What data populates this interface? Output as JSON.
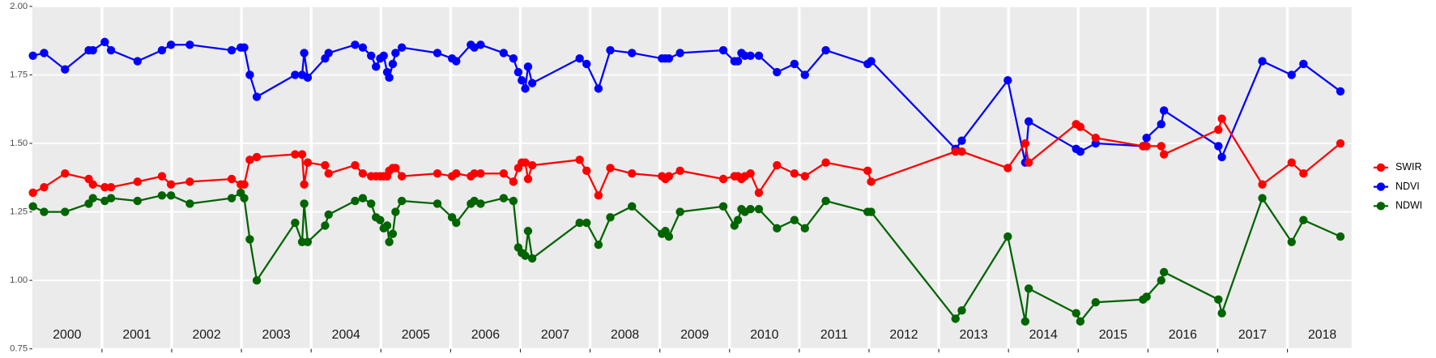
{
  "chart_data": {
    "type": "line",
    "x": [
      2000.01,
      2000.17,
      2000.47,
      2000.81,
      2000.87,
      2001.04,
      2001.13,
      2001.51,
      2001.86,
      2001.99,
      2002.26,
      2002.86,
      2002.99,
      2003.04,
      2003.12,
      2003.22,
      2003.77,
      2003.87,
      2003.9,
      2003.95,
      2004.2,
      2004.25,
      2004.63,
      2004.74,
      2004.86,
      2004.93,
      2004.99,
      2005.04,
      2005.09,
      2005.12,
      2005.17,
      2005.21,
      2005.3,
      2005.81,
      2006.02,
      2006.08,
      2006.29,
      2006.34,
      2006.43,
      2006.76,
      2006.9,
      2006.97,
      2007.02,
      2007.07,
      2007.11,
      2007.17,
      2007.85,
      2007.95,
      2008.12,
      2008.29,
      2008.6,
      2009.03,
      2009.08,
      2009.13,
      2009.29,
      2009.91,
      2010.07,
      2010.12,
      2010.17,
      2010.22,
      2010.3,
      2010.42,
      2010.68,
      2010.93,
      2011.08,
      2011.38,
      2011.98,
      2012.03,
      2013.24,
      2013.33,
      2013.99,
      2014.24,
      2014.29,
      2014.97,
      2015.03,
      2015.25,
      2015.93,
      2015.98,
      2016.19,
      2016.23,
      2017.01,
      2017.06,
      2017.64,
      2018.06,
      2018.23,
      2018.76
    ],
    "series": [
      {
        "name": "SWIR",
        "color": "#ff0000",
        "values": [
          1.32,
          1.34,
          1.39,
          1.37,
          1.35,
          1.34,
          1.34,
          1.36,
          1.38,
          1.35,
          1.36,
          1.37,
          1.35,
          1.35,
          1.44,
          1.45,
          1.46,
          1.46,
          1.35,
          1.43,
          1.42,
          1.39,
          1.42,
          1.39,
          1.38,
          1.38,
          1.38,
          1.38,
          1.38,
          1.4,
          1.41,
          1.41,
          1.38,
          1.39,
          1.38,
          1.39,
          1.38,
          1.39,
          1.39,
          1.39,
          1.36,
          1.41,
          1.43,
          1.43,
          1.37,
          1.42,
          1.44,
          1.4,
          1.31,
          1.41,
          1.39,
          1.38,
          1.37,
          1.38,
          1.4,
          1.37,
          1.38,
          1.38,
          1.37,
          1.38,
          1.39,
          1.32,
          1.42,
          1.39,
          1.38,
          1.43,
          1.4,
          1.36,
          1.47,
          1.47,
          1.41,
          1.5,
          1.43,
          1.57,
          1.56,
          1.52,
          1.49,
          1.49,
          1.49,
          1.46,
          1.55,
          1.59,
          1.35,
          1.43,
          1.39,
          1.5
        ]
      },
      {
        "name": "NDVI",
        "color": "#0000ff",
        "values": [
          1.82,
          1.83,
          1.77,
          1.84,
          1.84,
          1.87,
          1.84,
          1.8,
          1.84,
          1.86,
          1.86,
          1.84,
          1.85,
          1.85,
          1.75,
          1.67,
          1.75,
          1.75,
          1.83,
          1.74,
          1.81,
          1.83,
          1.86,
          1.85,
          1.82,
          1.78,
          1.81,
          1.82,
          1.76,
          1.74,
          1.79,
          1.83,
          1.85,
          1.83,
          1.81,
          1.8,
          1.86,
          1.85,
          1.86,
          1.83,
          1.81,
          1.76,
          1.73,
          1.7,
          1.78,
          1.72,
          1.81,
          1.79,
          1.7,
          1.84,
          1.83,
          1.81,
          1.81,
          1.81,
          1.83,
          1.84,
          1.8,
          1.8,
          1.83,
          1.82,
          1.82,
          1.82,
          1.76,
          1.79,
          1.75,
          1.84,
          1.79,
          1.8,
          1.48,
          1.51,
          1.73,
          1.43,
          1.58,
          1.48,
          1.47,
          1.5,
          1.49,
          1.52,
          1.57,
          1.62,
          1.49,
          1.45,
          1.8,
          1.75,
          1.79,
          1.69
        ]
      },
      {
        "name": "NDWI",
        "color": "#006400",
        "values": [
          1.27,
          1.25,
          1.25,
          1.28,
          1.3,
          1.29,
          1.3,
          1.29,
          1.31,
          1.31,
          1.28,
          1.3,
          1.32,
          1.3,
          1.15,
          1.0,
          1.21,
          1.14,
          1.28,
          1.14,
          1.2,
          1.24,
          1.29,
          1.3,
          1.28,
          1.23,
          1.22,
          1.19,
          1.2,
          1.14,
          1.17,
          1.25,
          1.29,
          1.28,
          1.23,
          1.21,
          1.28,
          1.29,
          1.28,
          1.3,
          1.29,
          1.12,
          1.1,
          1.09,
          1.18,
          1.08,
          1.21,
          1.21,
          1.13,
          1.23,
          1.27,
          1.17,
          1.18,
          1.16,
          1.25,
          1.27,
          1.2,
          1.22,
          1.26,
          1.25,
          1.26,
          1.26,
          1.19,
          1.22,
          1.19,
          1.29,
          1.25,
          1.25,
          0.86,
          0.89,
          1.16,
          0.85,
          0.97,
          0.88,
          0.85,
          0.92,
          0.93,
          0.94,
          1.0,
          1.03,
          0.93,
          0.88,
          1.3,
          1.14,
          1.22,
          1.16
        ]
      }
    ],
    "xlim": [
      2000,
      2018.92
    ],
    "xticks": [
      {
        "value": 2000.5,
        "label": "2000"
      },
      {
        "value": 2001.5,
        "label": "2001"
      },
      {
        "value": 2002.5,
        "label": "2002"
      },
      {
        "value": 2003.5,
        "label": "2003"
      },
      {
        "value": 2004.5,
        "label": "2004"
      },
      {
        "value": 2005.5,
        "label": "2005"
      },
      {
        "value": 2006.5,
        "label": "2006"
      },
      {
        "value": 2007.5,
        "label": "2007"
      },
      {
        "value": 2008.5,
        "label": "2008"
      },
      {
        "value": 2009.5,
        "label": "2009"
      },
      {
        "value": 2010.5,
        "label": "2010"
      },
      {
        "value": 2011.5,
        "label": "2011"
      },
      {
        "value": 2012.5,
        "label": "2012"
      },
      {
        "value": 2013.5,
        "label": "2013"
      },
      {
        "value": 2014.5,
        "label": "2014"
      },
      {
        "value": 2015.5,
        "label": "2015"
      },
      {
        "value": 2016.5,
        "label": "2016"
      },
      {
        "value": 2017.5,
        "label": "2017"
      },
      {
        "value": 2018.5,
        "label": "2018"
      }
    ],
    "xgrid": [
      2001,
      2002,
      2003,
      2004,
      2005,
      2006,
      2007,
      2008,
      2009,
      2010,
      2011,
      2012,
      2013,
      2014,
      2015,
      2016,
      2017,
      2018
    ],
    "ylim": [
      0.75,
      2.0
    ],
    "yticks": [
      {
        "value": 0.75,
        "label": "0.75"
      },
      {
        "value": 1.0,
        "label": "1.00"
      },
      {
        "value": 1.25,
        "label": "1.25"
      },
      {
        "value": 1.5,
        "label": "1.50"
      },
      {
        "value": 1.75,
        "label": "1.75"
      },
      {
        "value": 2.0,
        "label": "2.00"
      }
    ],
    "grid": true,
    "legend": "right"
  }
}
